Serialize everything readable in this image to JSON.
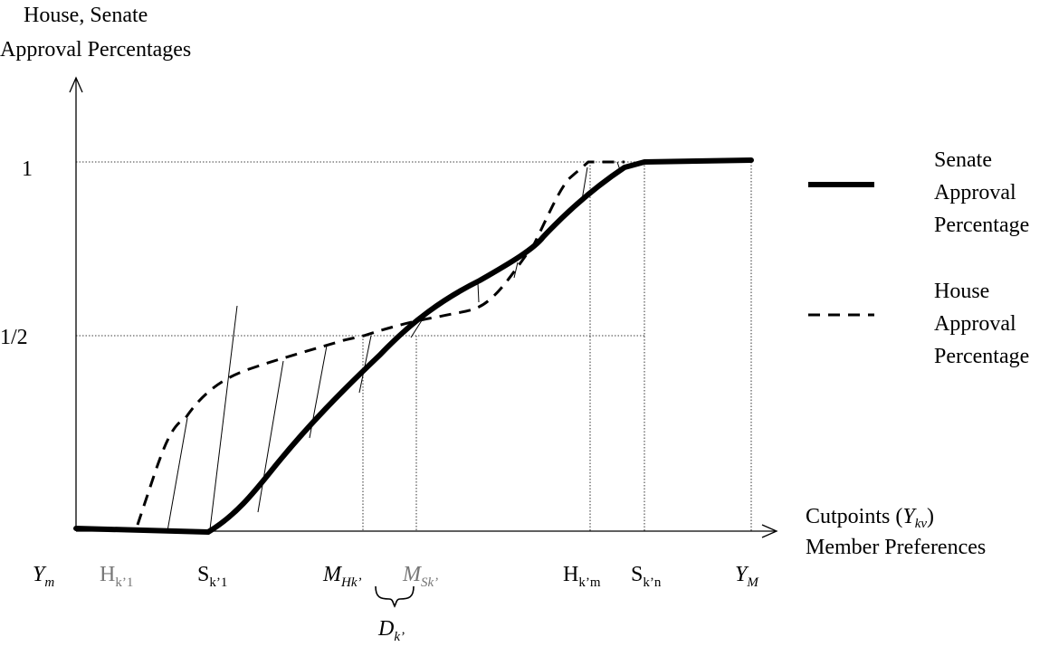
{
  "y_axis_title": [
    "House, Senate",
    "Approval Percentages"
  ],
  "y_ticks": {
    "one": "1",
    "half": "1/2"
  },
  "x_axis_title": {
    "line1_prefix": "Cutpoints (",
    "line1_var": "Y",
    "line1_sub": "kv",
    "line1_suffix": ")",
    "line2": "Member Preferences"
  },
  "x_labels": {
    "y_m": {
      "main": "Y",
      "sub": "m"
    },
    "h_k1": {
      "main": "H",
      "sub": "k’1"
    },
    "s_k1": {
      "main": "S",
      "sub": "k’1"
    },
    "m_hk": {
      "main": "M",
      "sub": "Hk’"
    },
    "m_sk": {
      "main": "M",
      "sub": "Sk’"
    },
    "h_km": {
      "main": "H",
      "sub": "k’m"
    },
    "s_kn": {
      "main": "S",
      "sub": "k’n"
    },
    "y_big_m": {
      "main": "Y",
      "sub": "M"
    }
  },
  "brace_label": {
    "main": "D",
    "sub": "k’"
  },
  "legend": {
    "senate": [
      "Senate",
      "Approval",
      "Percentage"
    ],
    "house": [
      "House",
      "Approval",
      "Percentage"
    ]
  },
  "colors": {
    "ink": "#000000",
    "muted_label": "#777777"
  }
}
